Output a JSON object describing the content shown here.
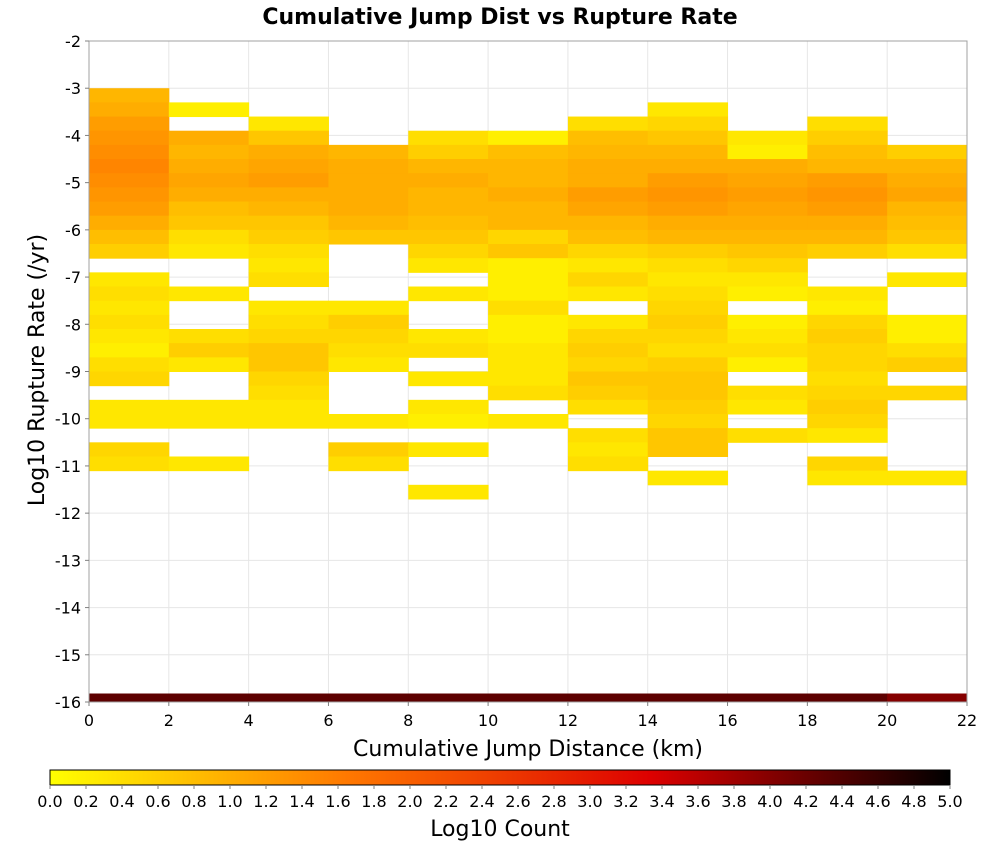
{
  "chart_data": {
    "type": "heatmap",
    "title": "Cumulative Jump Dist vs Rupture Rate",
    "xlabel": "Cumulative Jump Distance (km)",
    "ylabel": "Log10 Rupture Rate (/yr)",
    "xlim": [
      0,
      22
    ],
    "ylim": [
      -16,
      -2
    ],
    "xticks": [
      0,
      2,
      4,
      6,
      8,
      10,
      12,
      14,
      16,
      18,
      20,
      22
    ],
    "yticks": [
      -16,
      -15,
      -14,
      -13,
      -12,
      -11,
      -10,
      -9,
      -8,
      -7,
      -6,
      -5,
      -4,
      -3,
      -2
    ],
    "grid": true,
    "x_bin_width": 2,
    "y_bin_height": 0.3,
    "colorbar": {
      "label": "Log10 Count",
      "range": [
        0.0,
        5.0
      ],
      "ticks": [
        "0.0",
        "0.2",
        "0.4",
        "0.6",
        "0.8",
        "1.0",
        "1.2",
        "1.4",
        "1.6",
        "1.8",
        "2.0",
        "2.2",
        "2.4",
        "2.6",
        "2.8",
        "3.0",
        "3.2",
        "3.4",
        "3.6",
        "3.8",
        "4.0",
        "4.2",
        "4.4",
        "4.6",
        "4.8",
        "5.0"
      ],
      "colormap": [
        "#ffff00",
        "#ff7700",
        "#dd0000",
        "#000000"
      ]
    },
    "columns": [
      {
        "x": 1,
        "cells": [
          [
            -3.15,
            0.9
          ],
          [
            -3.45,
            1.0
          ],
          [
            -3.75,
            1.2
          ],
          [
            -4.05,
            1.3
          ],
          [
            -4.35,
            1.4
          ],
          [
            -4.65,
            1.5
          ],
          [
            -4.95,
            1.4
          ],
          [
            -5.25,
            1.3
          ],
          [
            -5.55,
            1.2
          ],
          [
            -5.85,
            1.0
          ],
          [
            -6.15,
            0.8
          ],
          [
            -6.45,
            0.6
          ],
          [
            -7.05,
            0.3
          ],
          [
            -7.35,
            0.4
          ],
          [
            -7.65,
            0.3
          ],
          [
            -7.95,
            0.4
          ],
          [
            -8.25,
            0.3
          ],
          [
            -8.55,
            0.2
          ],
          [
            -8.85,
            0.4
          ],
          [
            -9.15,
            0.5
          ],
          [
            -9.75,
            0.3
          ],
          [
            -10.05,
            0.3
          ],
          [
            -10.65,
            0.5
          ],
          [
            -10.95,
            0.4
          ]
        ]
      },
      {
        "x": 3,
        "cells": [
          [
            -3.45,
            0.2
          ],
          [
            -4.05,
            1.0
          ],
          [
            -4.35,
            0.9
          ],
          [
            -4.65,
            1.0
          ],
          [
            -4.95,
            1.1
          ],
          [
            -5.25,
            1.0
          ],
          [
            -5.55,
            0.8
          ],
          [
            -5.85,
            0.7
          ],
          [
            -6.15,
            0.4
          ],
          [
            -6.45,
            0.3
          ],
          [
            -7.35,
            0.3
          ],
          [
            -8.25,
            0.4
          ],
          [
            -8.55,
            0.6
          ],
          [
            -8.85,
            0.3
          ],
          [
            -9.75,
            0.3
          ],
          [
            -10.05,
            0.3
          ],
          [
            -10.95,
            0.3
          ]
        ]
      },
      {
        "x": 5,
        "cells": [
          [
            -3.75,
            0.3
          ],
          [
            -4.05,
            0.7
          ],
          [
            -4.35,
            1.0
          ],
          [
            -4.65,
            1.1
          ],
          [
            -4.95,
            1.2
          ],
          [
            -5.25,
            1.0
          ],
          [
            -5.55,
            0.9
          ],
          [
            -5.85,
            0.7
          ],
          [
            -6.15,
            0.6
          ],
          [
            -6.45,
            0.4
          ],
          [
            -6.75,
            0.3
          ],
          [
            -7.05,
            0.4
          ],
          [
            -7.65,
            0.3
          ],
          [
            -7.95,
            0.4
          ],
          [
            -8.25,
            0.5
          ],
          [
            -8.55,
            0.7
          ],
          [
            -8.85,
            0.7
          ],
          [
            -9.15,
            0.5
          ],
          [
            -9.45,
            0.4
          ],
          [
            -9.75,
            0.3
          ],
          [
            -10.05,
            0.3
          ]
        ]
      },
      {
        "x": 7,
        "cells": [
          [
            -4.35,
            0.9
          ],
          [
            -4.65,
            1.0
          ],
          [
            -4.95,
            1.0
          ],
          [
            -5.25,
            1.0
          ],
          [
            -5.55,
            1.0
          ],
          [
            -5.85,
            0.9
          ],
          [
            -6.15,
            0.7
          ],
          [
            -7.65,
            0.3
          ],
          [
            -7.95,
            0.6
          ],
          [
            -8.25,
            0.5
          ],
          [
            -8.55,
            0.4
          ],
          [
            -8.85,
            0.3
          ],
          [
            -10.05,
            0.3
          ],
          [
            -10.65,
            0.6
          ],
          [
            -10.95,
            0.4
          ]
        ]
      },
      {
        "x": 9,
        "cells": [
          [
            -4.05,
            0.4
          ],
          [
            -4.35,
            0.6
          ],
          [
            -4.65,
            0.9
          ],
          [
            -4.95,
            1.0
          ],
          [
            -5.25,
            0.9
          ],
          [
            -5.55,
            0.9
          ],
          [
            -5.85,
            0.8
          ],
          [
            -6.15,
            0.7
          ],
          [
            -6.45,
            0.5
          ],
          [
            -6.75,
            0.3
          ],
          [
            -7.35,
            0.3
          ],
          [
            -8.25,
            0.3
          ],
          [
            -8.55,
            0.4
          ],
          [
            -9.15,
            0.3
          ],
          [
            -9.75,
            0.3
          ],
          [
            -10.05,
            0.2
          ],
          [
            -10.65,
            0.3
          ],
          [
            -11.55,
            0.3
          ]
        ]
      },
      {
        "x": 11,
        "cells": [
          [
            -4.05,
            0.2
          ],
          [
            -4.35,
            0.8
          ],
          [
            -4.65,
            0.9
          ],
          [
            -4.95,
            0.9
          ],
          [
            -5.25,
            1.0
          ],
          [
            -5.55,
            0.9
          ],
          [
            -5.85,
            0.9
          ],
          [
            -6.15,
            0.5
          ],
          [
            -6.45,
            0.7
          ],
          [
            -6.75,
            0.2
          ],
          [
            -7.05,
            0.2
          ],
          [
            -7.35,
            0.2
          ],
          [
            -7.65,
            0.4
          ],
          [
            -7.95,
            0.2
          ],
          [
            -8.25,
            0.2
          ],
          [
            -8.55,
            0.3
          ],
          [
            -8.85,
            0.3
          ],
          [
            -9.15,
            0.3
          ],
          [
            -9.45,
            0.4
          ],
          [
            -10.05,
            0.3
          ]
        ]
      },
      {
        "x": 13,
        "cells": [
          [
            -3.75,
            0.4
          ],
          [
            -4.05,
            0.8
          ],
          [
            -4.35,
            0.9
          ],
          [
            -4.65,
            1.0
          ],
          [
            -4.95,
            1.0
          ],
          [
            -5.25,
            1.2
          ],
          [
            -5.55,
            1.1
          ],
          [
            -5.85,
            0.9
          ],
          [
            -6.15,
            0.8
          ],
          [
            -6.45,
            0.5
          ],
          [
            -6.75,
            0.3
          ],
          [
            -7.05,
            0.5
          ],
          [
            -7.35,
            0.3
          ],
          [
            -7.95,
            0.3
          ],
          [
            -8.25,
            0.5
          ],
          [
            -8.55,
            0.6
          ],
          [
            -8.85,
            0.5
          ],
          [
            -9.15,
            0.7
          ],
          [
            -9.45,
            0.6
          ],
          [
            -9.75,
            0.4
          ],
          [
            -10.35,
            0.4
          ],
          [
            -10.65,
            0.3
          ],
          [
            -10.95,
            0.4
          ]
        ]
      },
      {
        "x": 15,
        "cells": [
          [
            -3.45,
            0.3
          ],
          [
            -3.75,
            0.5
          ],
          [
            -4.05,
            0.7
          ],
          [
            -4.35,
            0.9
          ],
          [
            -4.65,
            1.0
          ],
          [
            -4.95,
            1.2
          ],
          [
            -5.25,
            1.3
          ],
          [
            -5.55,
            1.2
          ],
          [
            -5.85,
            1.0
          ],
          [
            -6.15,
            0.9
          ],
          [
            -6.45,
            0.6
          ],
          [
            -6.75,
            0.4
          ],
          [
            -7.05,
            0.3
          ],
          [
            -7.35,
            0.4
          ],
          [
            -7.65,
            0.5
          ],
          [
            -7.95,
            0.6
          ],
          [
            -8.25,
            0.5
          ],
          [
            -8.55,
            0.4
          ],
          [
            -8.85,
            0.6
          ],
          [
            -9.15,
            0.7
          ],
          [
            -9.45,
            0.7
          ],
          [
            -9.75,
            0.6
          ],
          [
            -10.05,
            0.5
          ],
          [
            -10.35,
            0.7
          ],
          [
            -10.65,
            0.7
          ],
          [
            -11.25,
            0.3
          ]
        ]
      },
      {
        "x": 17,
        "cells": [
          [
            -4.05,
            0.3
          ],
          [
            -4.35,
            0.2
          ],
          [
            -4.65,
            1.0
          ],
          [
            -4.95,
            1.1
          ],
          [
            -5.25,
            1.2
          ],
          [
            -5.55,
            1.1
          ],
          [
            -5.85,
            1.0
          ],
          [
            -6.15,
            0.9
          ],
          [
            -6.45,
            0.7
          ],
          [
            -6.75,
            0.5
          ],
          [
            -7.05,
            0.3
          ],
          [
            -7.35,
            0.2
          ],
          [
            -7.95,
            0.2
          ],
          [
            -8.25,
            0.3
          ],
          [
            -8.55,
            0.4
          ],
          [
            -8.85,
            0.2
          ],
          [
            -9.45,
            0.4
          ],
          [
            -9.75,
            0.3
          ],
          [
            -10.35,
            0.4
          ]
        ]
      },
      {
        "x": 19,
        "cells": [
          [
            -3.75,
            0.4
          ],
          [
            -4.05,
            0.6
          ],
          [
            -4.35,
            0.8
          ],
          [
            -4.65,
            0.9
          ],
          [
            -4.95,
            1.2
          ],
          [
            -5.25,
            1.3
          ],
          [
            -5.55,
            1.2
          ],
          [
            -5.85,
            1.0
          ],
          [
            -6.15,
            0.9
          ],
          [
            -6.45,
            0.6
          ],
          [
            -7.35,
            0.3
          ],
          [
            -7.65,
            0.2
          ],
          [
            -7.95,
            0.5
          ],
          [
            -8.25,
            0.6
          ],
          [
            -8.55,
            0.5
          ],
          [
            -8.85,
            0.5
          ],
          [
            -9.15,
            0.4
          ],
          [
            -9.45,
            0.5
          ],
          [
            -9.75,
            0.6
          ],
          [
            -10.05,
            0.5
          ],
          [
            -10.35,
            0.3
          ],
          [
            -10.95,
            0.5
          ],
          [
            -11.25,
            0.3
          ]
        ]
      },
      {
        "x": 21,
        "cells": [
          [
            -4.35,
            0.6
          ],
          [
            -4.65,
            0.9
          ],
          [
            -4.95,
            1.0
          ],
          [
            -5.25,
            1.1
          ],
          [
            -5.55,
            0.9
          ],
          [
            -5.85,
            0.8
          ],
          [
            -6.15,
            0.7
          ],
          [
            -6.45,
            0.4
          ],
          [
            -7.05,
            0.3
          ],
          [
            -7.95,
            0.2
          ],
          [
            -8.25,
            0.2
          ],
          [
            -8.55,
            0.4
          ],
          [
            -8.85,
            0.6
          ],
          [
            -9.45,
            0.5
          ],
          [
            -11.25,
            0.3
          ]
        ]
      }
    ],
    "bottom_row": {
      "y": -15.94,
      "values": [
        4.3,
        4.3,
        4.3,
        4.3,
        4.3,
        4.3,
        4.3,
        4.3,
        4.3,
        4.3,
        4.0
      ]
    }
  }
}
